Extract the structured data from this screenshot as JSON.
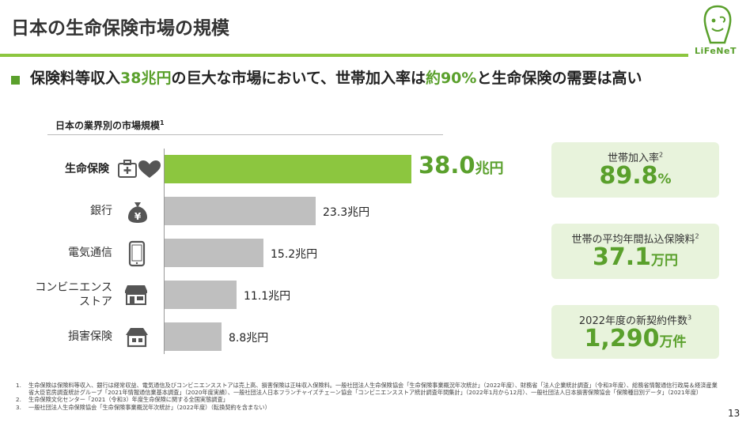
{
  "page": {
    "title": "日本の生命保険市場の規模",
    "logo_text": "LiFeNeT",
    "page_number": "13"
  },
  "headline": {
    "part1": "保険料等収入",
    "highlight1": "38兆円",
    "part2": "の巨大な市場において、世帯加入率は",
    "highlight2": "約90%",
    "part3": "と生命保険の需要は高い"
  },
  "chart_data": {
    "type": "bar",
    "orientation": "horizontal",
    "title": "日本の業界別の市場規模",
    "title_note": "1",
    "unit": "兆円",
    "categories": [
      "生命保険",
      "銀行",
      "電気通信",
      "コンビニエンスストア",
      "損害保険"
    ],
    "category_lines": [
      [
        "生命保険"
      ],
      [
        "銀行"
      ],
      [
        "電気通信"
      ],
      [
        "コンビニエンス",
        "ストア"
      ],
      [
        "損害保険"
      ]
    ],
    "values": [
      38.0,
      23.3,
      15.2,
      11.1,
      8.8
    ],
    "value_labels": [
      "38.0",
      "23.3兆円",
      "15.2兆円",
      "11.1兆円",
      "8.8兆円"
    ],
    "highlight_unit": "兆円",
    "highlight_index": 0,
    "icons": [
      "first-aid-heart-icon",
      "money-bag-yen-icon",
      "smartphone-icon",
      "store-icon",
      "house-icon"
    ],
    "colors": {
      "highlight": "#8cc63f",
      "default": "#bfbfbf"
    },
    "xlim": [
      0,
      38.0
    ]
  },
  "kpis": [
    {
      "label": "世帯加入率",
      "note": "2",
      "value": "89.8",
      "unit": "%"
    },
    {
      "label": "世帯の平均年間払込保険料",
      "note": "2",
      "value": "37.1",
      "unit": "万円"
    },
    {
      "label": "2022年度の新契約件数",
      "note": "3",
      "value": "1,290",
      "unit": "万件"
    }
  ],
  "footnotes": [
    {
      "num": "1.",
      "text": "生命保険は保険料等収入、銀行は経常収益、電気通信及びコンビニエンスストアは売上高、損害保険は正味収入保険料。一般社団法人生命保険協会「生命保険事業概況年次統計」（2022年度）、財務省「法人企業統計調査」（令和3年度）、総務省情報通信行政局＆経済産業省大臣官房調査統計グループ「2021年情報通信業基本調査」（2020年度実績）、一般社団法人日本フランチャイズチェーン協会「コンビニエンスストア統計調査年間集計」（2022年1月から12月）、一般社団法人日本損害保険協会「保険種目別データ」（2021年度）"
    },
    {
      "num": "2.",
      "text": "生命保険文化センター「2021（令和3）年度生命保険に関する全国実態調査」"
    },
    {
      "num": "3.",
      "text": "一般社団法人生命保険協会「生命保険事業概況年次統計」（2022年度）（転換契約を含まない）"
    }
  ]
}
